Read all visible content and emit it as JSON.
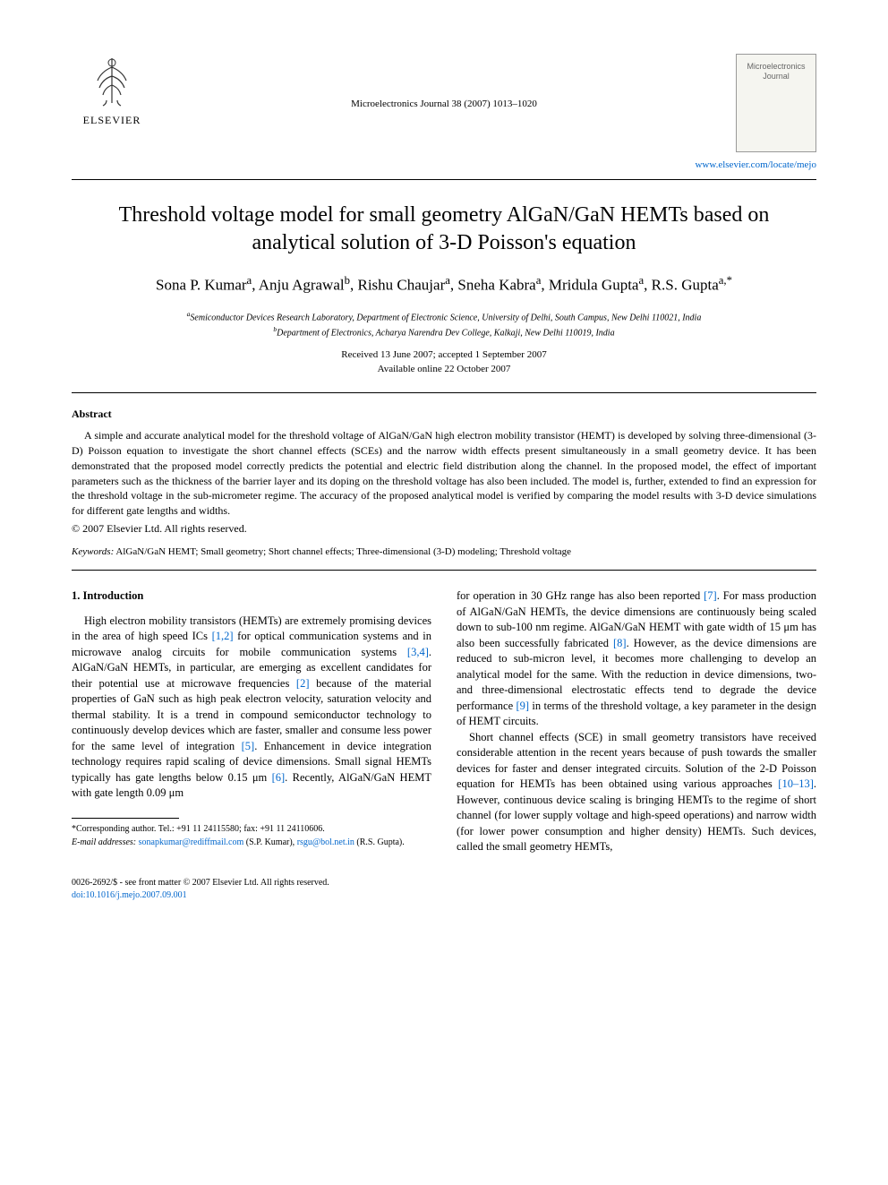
{
  "header": {
    "publisher": "ELSEVIER",
    "journal_ref": "Microelectronics Journal 38 (2007) 1013–1020",
    "journal_cover_title": "Microelectronics Journal",
    "journal_link": "www.elsevier.com/locate/mejo"
  },
  "title": "Threshold voltage model for small geometry AlGaN/GaN HEMTs based on analytical solution of 3-D Poisson's equation",
  "authors_html": "Sona P. Kumar<sup>a</sup>, Anju Agrawal<sup>b</sup>, Rishu Chaujar<sup>a</sup>, Sneha Kabra<sup>a</sup>, Mridula Gupta<sup>a</sup>, R.S. Gupta<sup>a,*</sup>",
  "affiliations": {
    "a": "Semiconductor Devices Research Laboratory, Department of Electronic Science, University of Delhi, South Campus, New Delhi 110021, India",
    "b": "Department of Electronics, Acharya Narendra Dev College, Kalkaji, New Delhi 110019, India"
  },
  "dates": {
    "line1": "Received 13 June 2007; accepted 1 September 2007",
    "line2": "Available online 22 October 2007"
  },
  "abstract": {
    "heading": "Abstract",
    "body": "A simple and accurate analytical model for the threshold voltage of AlGaN/GaN high electron mobility transistor (HEMT) is developed by solving three-dimensional (3-D) Poisson equation to investigate the short channel effects (SCEs) and the narrow width effects present simultaneously in a small geometry device. It has been demonstrated that the proposed model correctly predicts the potential and electric field distribution along the channel. In the proposed model, the effect of important parameters such as the thickness of the barrier layer and its doping on the threshold voltage has also been included. The model is, further, extended to find an expression for the threshold voltage in the sub-micrometer regime. The accuracy of the proposed analytical model is verified by comparing the model results with 3-D device simulations for different gate lengths and widths.",
    "copyright": "© 2007 Elsevier Ltd. All rights reserved."
  },
  "keywords": {
    "label": "Keywords:",
    "text": "AlGaN/GaN HEMT; Small geometry; Short channel effects; Three-dimensional (3-D) modeling; Threshold voltage"
  },
  "section1": {
    "heading": "1. Introduction",
    "col_left_html": "High electron mobility transistors (HEMTs) are extremely promising devices in the area of high speed ICs <span class=\"cite\">[1,2]</span> for optical communication systems and in microwave analog circuits for mobile communication systems <span class=\"cite\">[3,4]</span>. AlGaN/GaN HEMTs, in particular, are emerging as excellent candidates for their potential use at microwave frequencies <span class=\"cite\">[2]</span> because of the material properties of GaN such as high peak electron velocity, saturation velocity and thermal stability. It is a trend in compound semiconductor technology to continuously develop devices which are faster, smaller and consume less power for the same level of integration <span class=\"cite\">[5]</span>. Enhancement in device integration technology requires rapid scaling of device dimensions. Small signal HEMTs typically has gate lengths below 0.15 μm <span class=\"cite\">[6]</span>. Recently, AlGaN/GaN HEMT with gate length 0.09 μm",
    "col_right_p1_html": "for operation in 30 GHz range has also been reported <span class=\"cite\">[7]</span>. For mass production of AlGaN/GaN HEMTs, the device dimensions are continuously being scaled down to sub-100 nm regime. AlGaN/GaN HEMT with gate width of 15 μm has also been successfully fabricated <span class=\"cite\">[8]</span>. However, as the device dimensions are reduced to sub-micron level, it becomes more challenging to develop an analytical model for the same. With the reduction in device dimensions, two- and three-dimensional electrostatic effects tend to degrade the device performance <span class=\"cite\">[9]</span> in terms of the threshold voltage, a key parameter in the design of HEMT circuits.",
    "col_right_p2_html": "Short channel effects (SCE) in small geometry transistors have received considerable attention in the recent years because of push towards the smaller devices for faster and denser integrated circuits. Solution of the 2-D Poisson equation for HEMTs has been obtained using various approaches <span class=\"cite\">[10–13]</span>. However, continuous device scaling is bringing HEMTs to the regime of short channel (for lower supply voltage and high-speed operations) and narrow width (for lower power consumption and higher density) HEMTs. Such devices, called the small geometry HEMTs,"
  },
  "footnote": {
    "corr": "*Corresponding author. Tel.: +91 11 24115580; fax: +91 11 24110606.",
    "email_label": "E-mail addresses:",
    "emails_html": "<span class=\"email\">sonapkumar@rediffmail.com</span> (S.P. Kumar), <span class=\"email\">rsgu@bol.net.in</span> (R.S. Gupta)."
  },
  "footer": {
    "line1": "0026-2692/$ - see front matter © 2007 Elsevier Ltd. All rights reserved.",
    "doi": "doi:10.1016/j.mejo.2007.09.001"
  },
  "colors": {
    "link": "#0066cc",
    "text": "#000000",
    "background": "#ffffff"
  }
}
